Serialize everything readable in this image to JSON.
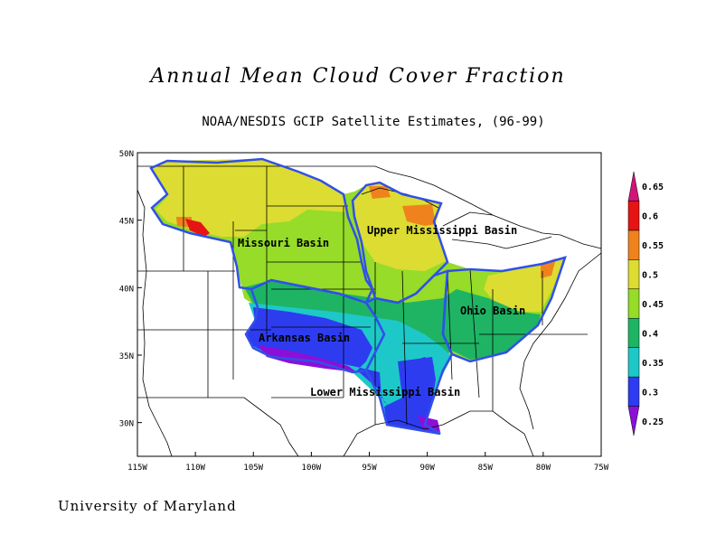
{
  "title": "Annual Mean Cloud Cover Fraction",
  "subtitle": "NOAA/NESDIS GCIP Satellite Estimates, (96-99)",
  "footer": "University of Maryland",
  "map": {
    "lon_range": [
      -115,
      -75
    ],
    "lat_range": [
      27.5,
      50
    ],
    "lon_ticks": [
      "115W",
      "110W",
      "105W",
      "100W",
      "95W",
      "90W",
      "85W",
      "80W",
      "75W"
    ],
    "lat_ticks": [
      "30N",
      "35N",
      "40N",
      "45N",
      "50N"
    ],
    "basin_labels": [
      "Missouri Basin",
      "Upper Mississippi Basin",
      "Ohio Basin",
      "Arkansas Basin",
      "Lower Mississippi Basin"
    ],
    "basin_outline_color": "#3050e8"
  },
  "colorbar": {
    "labels": [
      "0.25",
      "0.3",
      "0.35",
      "0.4",
      "0.45",
      "0.5",
      "0.55",
      "0.6",
      "0.65"
    ],
    "colors": [
      "#8c0fd8",
      "#2e3cf0",
      "#1ec8c8",
      "#1eb464",
      "#96dc28",
      "#dcdc32",
      "#f0821e",
      "#e61414",
      "#d2147a"
    ]
  }
}
